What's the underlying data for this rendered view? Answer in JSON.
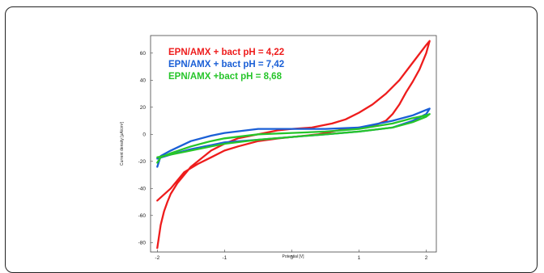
{
  "chart_data": {
    "type": "line",
    "title": "",
    "xlabel": "Potential [V]",
    "ylabel": "Current density [µA/cm²]",
    "xlim": [
      -2.1,
      2.15
    ],
    "ylim": [
      -87,
      73
    ],
    "xticks": [
      -2,
      -1,
      0,
      1,
      2
    ],
    "yticks": [
      -80,
      -60,
      -40,
      -20,
      0,
      20,
      40,
      60
    ],
    "grid": false,
    "legend_position": "top-left",
    "series": [
      {
        "name": "EPN/AMX + bact pH = 4,22",
        "color": "#ee1c1c",
        "x": [
          -2.0,
          -1.95,
          -1.9,
          -1.85,
          -1.8,
          -1.7,
          -1.5,
          -1.2,
          -1.0,
          -0.8,
          -0.5,
          -0.2,
          0.0,
          0.3,
          0.6,
          0.8,
          1.0,
          1.2,
          1.4,
          1.6,
          1.8,
          2.0,
          2.05,
          2.0,
          1.9,
          1.8,
          1.7,
          1.6,
          1.5,
          1.4,
          1.2,
          1.0,
          0.8,
          0.6,
          0.4,
          0.2,
          0.0,
          -0.2,
          -0.5,
          -0.8,
          -1.0,
          -1.2,
          -1.4,
          -1.6,
          -1.8,
          -2.0
        ],
        "y": [
          -84,
          -67,
          -57,
          -50,
          -44,
          -36,
          -24,
          -12,
          -7,
          -3,
          0,
          3,
          4,
          5,
          8,
          11,
          16,
          22,
          30,
          40,
          53,
          66,
          69,
          60,
          48,
          39,
          31,
          22,
          15,
          10,
          6,
          5,
          4,
          2,
          0,
          -1,
          -2,
          -3,
          -5,
          -9,
          -12,
          -17,
          -22,
          -28,
          -40,
          -49
        ]
      },
      {
        "name": "EPN/AMX + bact pH = 7,42",
        "color": "#1a5fd6",
        "x": [
          -2.0,
          -1.95,
          -1.8,
          -1.5,
          -1.2,
          -1.0,
          -0.5,
          0.0,
          0.5,
          1.0,
          1.5,
          1.8,
          2.0,
          2.05,
          2.0,
          1.8,
          1.5,
          1.0,
          0.5,
          0.0,
          -0.5,
          -1.0,
          -1.2,
          -1.5,
          -1.8,
          -2.0
        ],
        "y": [
          -24,
          -16,
          -12,
          -5,
          -1,
          1,
          4,
          4,
          4,
          5,
          10,
          14,
          18,
          19,
          15,
          10,
          5,
          2,
          0,
          -2,
          -4,
          -6,
          -8,
          -11,
          -15,
          -18
        ]
      },
      {
        "name": "EPN/AMX +bact pH = 8,68",
        "color": "#26c52a",
        "x": [
          -2.0,
          -1.95,
          -1.8,
          -1.5,
          -1.2,
          -1.0,
          -0.5,
          0.0,
          0.5,
          1.0,
          1.5,
          1.8,
          2.0,
          2.05,
          2.0,
          1.8,
          1.5,
          1.0,
          0.5,
          0.0,
          -0.5,
          -1.0,
          -1.2,
          -1.5,
          -1.8,
          -2.0
        ],
        "y": [
          -21,
          -17,
          -14,
          -9,
          -5,
          -3,
          0,
          1,
          2,
          4,
          8,
          12,
          14,
          15,
          13,
          9,
          5,
          2,
          0,
          -2,
          -4,
          -7,
          -9,
          -12,
          -15,
          -17
        ]
      }
    ]
  }
}
